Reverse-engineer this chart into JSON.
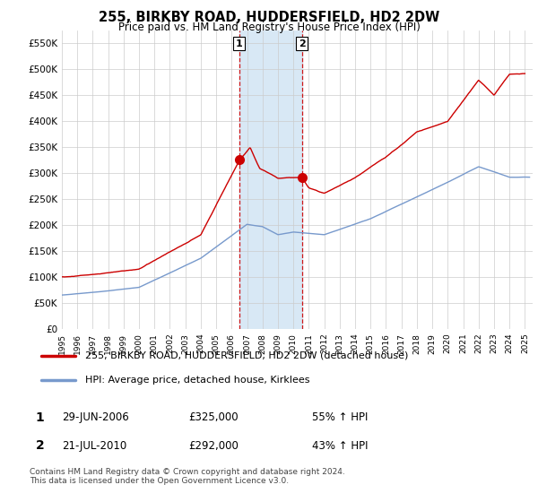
{
  "title": "255, BIRKBY ROAD, HUDDERSFIELD, HD2 2DW",
  "subtitle": "Price paid vs. HM Land Registry's House Price Index (HPI)",
  "ylabel_ticks": [
    "£0",
    "£50K",
    "£100K",
    "£150K",
    "£200K",
    "£250K",
    "£300K",
    "£350K",
    "£400K",
    "£450K",
    "£500K",
    "£550K"
  ],
  "ytick_values": [
    0,
    50000,
    100000,
    150000,
    200000,
    250000,
    300000,
    350000,
    400000,
    450000,
    500000,
    550000
  ],
  "xlim_start": 1995.0,
  "xlim_end": 2025.5,
  "ylim_min": 0,
  "ylim_max": 575000,
  "transaction1_date": 2006.49,
  "transaction1_price": 325000,
  "transaction2_date": 2010.55,
  "transaction2_price": 292000,
  "legend_line1": "255, BIRKBY ROAD, HUDDERSFIELD, HD2 2DW (detached house)",
  "legend_line2": "HPI: Average price, detached house, Kirklees",
  "table_row1_num": "1",
  "table_row1_date": "29-JUN-2006",
  "table_row1_price": "£325,000",
  "table_row1_hpi": "55% ↑ HPI",
  "table_row2_num": "2",
  "table_row2_date": "21-JUL-2010",
  "table_row2_price": "£292,000",
  "table_row2_hpi": "43% ↑ HPI",
  "footer": "Contains HM Land Registry data © Crown copyright and database right 2024.\nThis data is licensed under the Open Government Licence v3.0.",
  "color_red": "#cc0000",
  "color_blue": "#7799cc",
  "color_shading": "#d8e8f5",
  "background_color": "#ffffff",
  "grid_color": "#cccccc"
}
